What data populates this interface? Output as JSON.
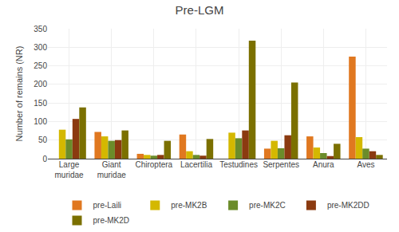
{
  "chart_data": {
    "type": "bar",
    "title": "Pre-LGM",
    "ylabel": "Number of remains (NR)",
    "categories": [
      "Large\nmuridae",
      "Giant\nmuridae",
      "Chiroptera",
      "Lacertilia",
      "Testudines",
      "Serpentes",
      "Anura",
      "Aves"
    ],
    "series": [
      {
        "name": "pre-Laili",
        "color": "#E07820",
        "values": [
          0,
          72,
          13,
          65,
          0,
          27,
          60,
          275
        ]
      },
      {
        "name": "pre-MK2B",
        "color": "#D4B800",
        "values": [
          78,
          60,
          10,
          20,
          70,
          48,
          30,
          58
        ]
      },
      {
        "name": "pre-MK2C",
        "color": "#6B8C2A",
        "values": [
          52,
          48,
          8,
          10,
          55,
          28,
          15,
          27
        ]
      },
      {
        "name": "pre-MK2DD",
        "color": "#8B3A10",
        "values": [
          107,
          50,
          10,
          8,
          76,
          63,
          7,
          20
        ]
      },
      {
        "name": "pre-MK2D",
        "color": "#7B7000",
        "values": [
          138,
          76,
          48,
          53,
          318,
          205,
          40,
          10
        ]
      }
    ],
    "ylim": [
      0,
      350
    ],
    "yticks": [
      0,
      50,
      100,
      150,
      200,
      250,
      300,
      350
    ],
    "grid": true,
    "legend": "bottom"
  }
}
